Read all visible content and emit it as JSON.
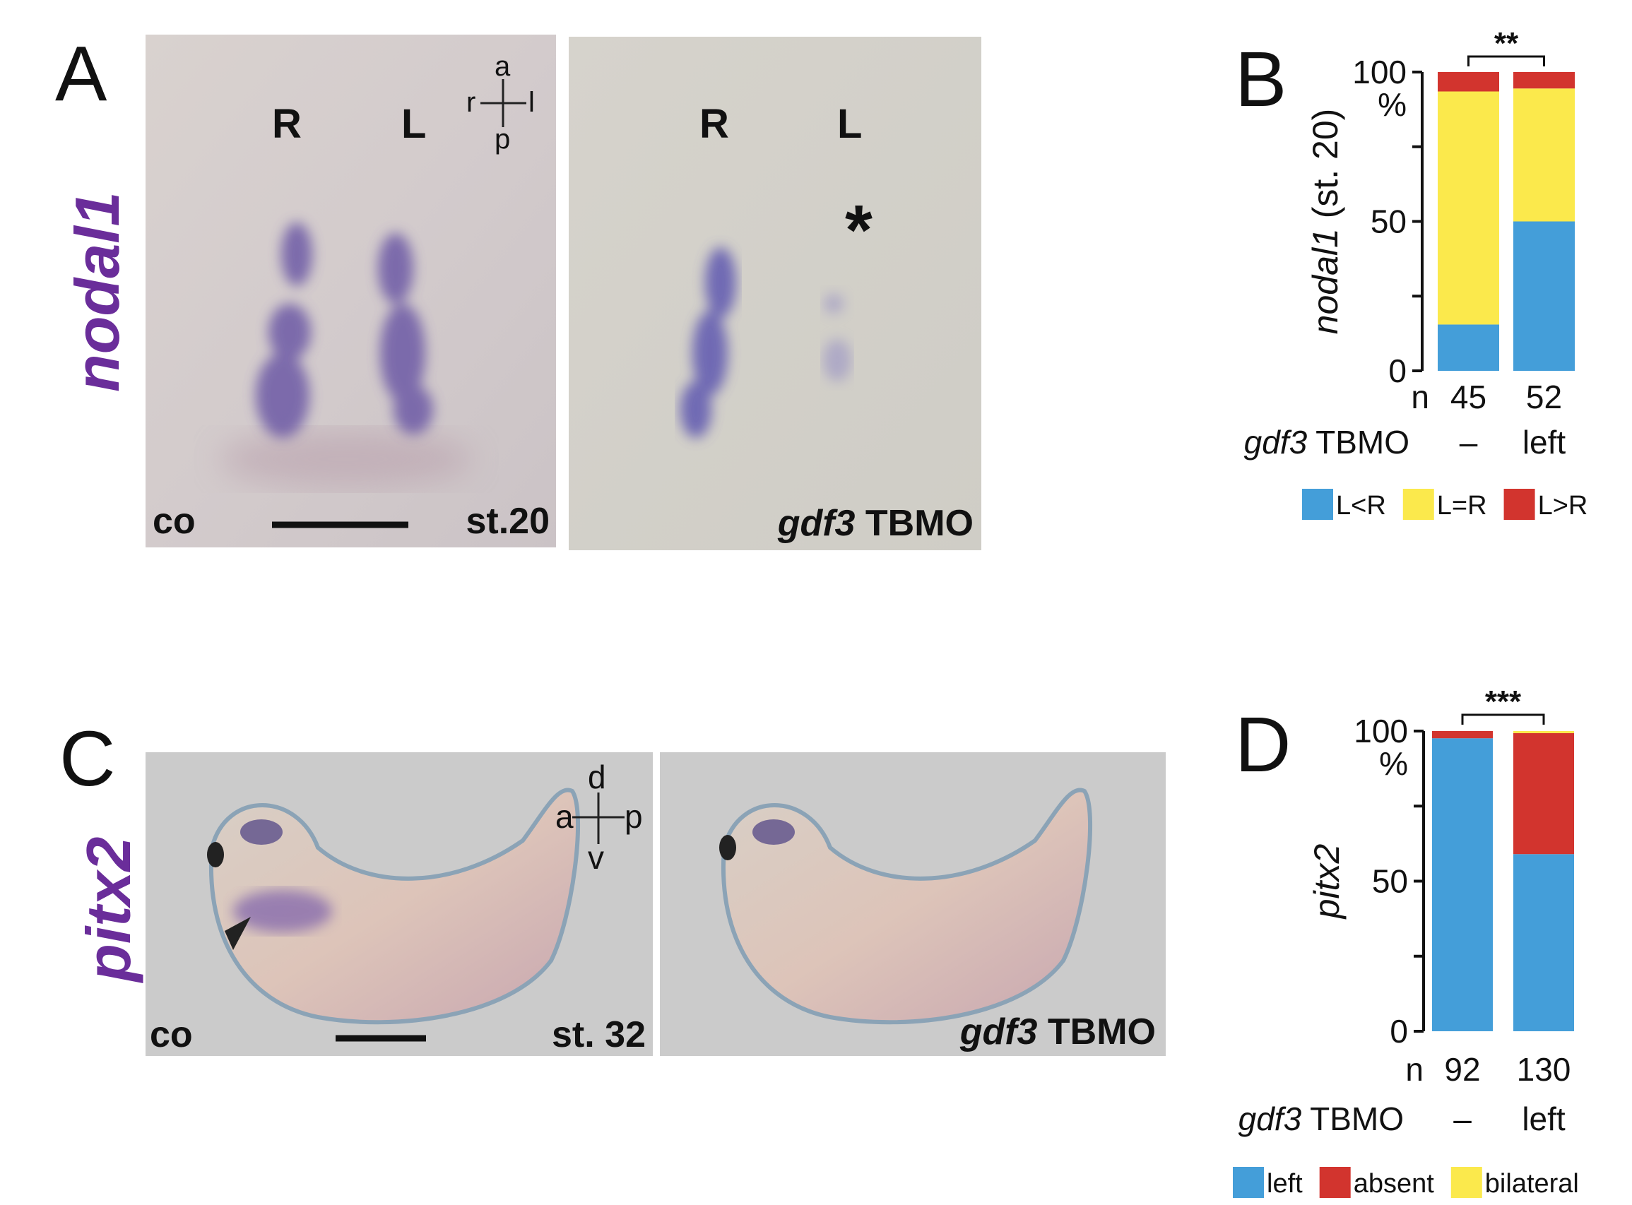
{
  "panels": {
    "A": {
      "letter": "A",
      "gene_label": "nodal1",
      "gene_color": "#6a2d9a",
      "left_image": {
        "side_r": "R",
        "side_l": "L",
        "axis_a": "a",
        "axis_p": "p",
        "axis_r": "r",
        "axis_l": "l",
        "condition": "co",
        "stage": "st.20"
      },
      "right_image": {
        "side_r": "R",
        "side_l": "L",
        "asterisk": "*",
        "condition_italic": "gdf3",
        "condition_rest": " TBMO"
      }
    },
    "B": {
      "letter": "B"
    },
    "C": {
      "letter": "C",
      "gene_label": "pitx2",
      "gene_color": "#6a2d9a",
      "left_image": {
        "axis_d": "d",
        "axis_a": "a",
        "axis_p": "p",
        "axis_v": "v",
        "condition": "co",
        "stage": "st. 32"
      },
      "right_image": {
        "condition_italic": "gdf3",
        "condition_rest": " TBMO"
      }
    },
    "D": {
      "letter": "D"
    }
  },
  "chart_data": [
    {
      "type": "bar",
      "stacked": true,
      "panel": "B",
      "ylabel_italic": "nodal1",
      "ylabel_rest": " (st. 20)",
      "ylim": [
        0,
        100
      ],
      "yticks": [
        "0",
        "50",
        "100"
      ],
      "yunit": "%",
      "n_label": "n",
      "n_values": [
        "45",
        "52"
      ],
      "group_label_italic": "gdf3",
      "group_label_rest": " TBMO",
      "categories": [
        "–",
        "left"
      ],
      "significance": "**",
      "legend_placement": "bottom",
      "series": [
        {
          "name": "L<R",
          "color": "#449ed9",
          "values": [
            15.5,
            50
          ]
        },
        {
          "name": "L=R",
          "color": "#fbe94c",
          "values": [
            78,
            44.5
          ]
        },
        {
          "name": "L>R",
          "color": "#d2342e",
          "values": [
            6.5,
            5.5
          ]
        }
      ]
    },
    {
      "type": "bar",
      "stacked": true,
      "panel": "D",
      "ylabel_italic": "pitx2",
      "ylabel_rest": "",
      "ylim": [
        0,
        100
      ],
      "yticks": [
        "0",
        "50",
        "100"
      ],
      "yunit": "%",
      "n_label": "n",
      "n_values": [
        "92",
        "130"
      ],
      "group_label_italic": "gdf3",
      "group_label_rest": " TBMO",
      "categories": [
        "–",
        "left"
      ],
      "significance": "***",
      "legend_placement": "bottom",
      "series": [
        {
          "name": "left",
          "color": "#449ed9",
          "values": [
            97.6,
            59
          ]
        },
        {
          "name": "absent",
          "color": "#d2342e",
          "values": [
            2.4,
            40.3
          ]
        },
        {
          "name": "bilateral",
          "color": "#fbe94c",
          "values": [
            0,
            0.7
          ]
        }
      ]
    }
  ]
}
